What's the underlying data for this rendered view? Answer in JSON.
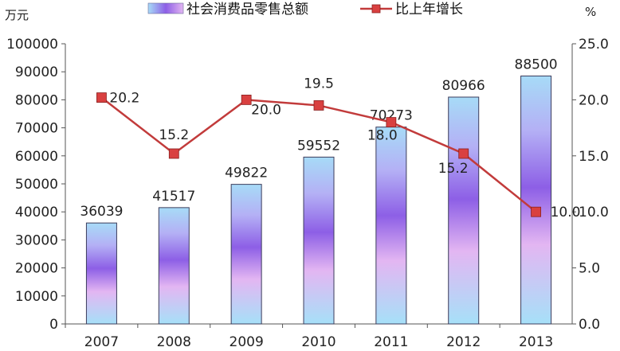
{
  "chart_data": {
    "type": "bar",
    "categories": [
      "2007",
      "2008",
      "2009",
      "2010",
      "2011",
      "2012",
      "2013"
    ],
    "series": [
      {
        "name": "社会消费品零售总额",
        "type": "bar",
        "axis": "left",
        "values": [
          36039,
          41517,
          49822,
          59552,
          70273,
          80966,
          88500
        ],
        "labels": [
          "36039",
          "41517",
          "49822",
          "59552",
          "70273",
          "80966",
          "88500"
        ]
      },
      {
        "name": "比上年增长",
        "type": "line",
        "axis": "right",
        "values": [
          20.2,
          15.2,
          20.0,
          19.5,
          18.0,
          15.2,
          10.0
        ],
        "labels": [
          "20.2",
          "15.2",
          "20.0",
          "19.5",
          "18.0",
          "15.2",
          "10.0"
        ]
      }
    ],
    "y_left": {
      "unit": "万元",
      "range": [
        0,
        100000
      ],
      "ticks": [
        "0",
        "10000",
        "20000",
        "30000",
        "40000",
        "50000",
        "60000",
        "70000",
        "80000",
        "90000",
        "100000"
      ]
    },
    "y_right": {
      "unit": "%",
      "range": [
        0,
        25
      ],
      "ticks": [
        "0.0",
        "5.0",
        "10.0",
        "15.0",
        "20.0",
        "25.0"
      ]
    },
    "grid": false,
    "legend": "top",
    "colors": {
      "bar_top": "#a8dcf8",
      "bar_mid": "#8a5ce8",
      "bar_light": "#e6b8f4",
      "line": "#c23b3b",
      "marker": "#d94040"
    }
  }
}
